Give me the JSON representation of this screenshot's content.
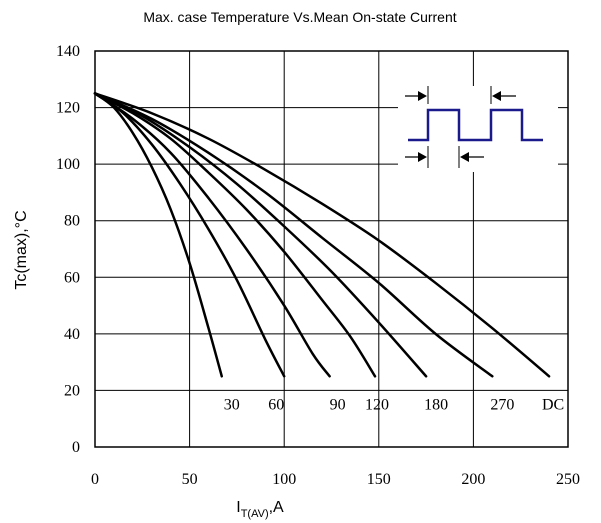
{
  "chart_data": {
    "type": "line",
    "title": "Max. case Temperature Vs.Mean On-state Current",
    "xlabel_main": "I",
    "xlabel_sub": "T(AV)",
    "xlabel_tail": ",A",
    "ylabel": "Tc(max),°C",
    "xlim": [
      0,
      250
    ],
    "ylim": [
      0,
      140
    ],
    "x_ticks": [
      "0",
      "50",
      "100",
      "150",
      "200",
      "250"
    ],
    "y_ticks": [
      "0",
      "20",
      "40",
      "60",
      "80",
      "100",
      "120",
      "140"
    ],
    "grid": true,
    "series": [
      {
        "name": "30",
        "x": [
          0,
          10,
          20,
          30,
          40,
          50,
          60,
          67
        ],
        "y": [
          125,
          120,
          111,
          99,
          84,
          65,
          42,
          25
        ]
      },
      {
        "name": "60",
        "x": [
          0,
          15,
          30,
          45,
          60,
          75,
          90,
          100
        ],
        "y": [
          125,
          118,
          107,
          93,
          77,
          59,
          38,
          25
        ]
      },
      {
        "name": "90",
        "x": [
          0,
          20,
          40,
          60,
          80,
          100,
          115,
          124
        ],
        "y": [
          125,
          116,
          104,
          88,
          70,
          50,
          33,
          25
        ]
      },
      {
        "name": "120",
        "x": [
          0,
          20,
          40,
          60,
          80,
          100,
          120,
          135,
          148
        ],
        "y": [
          125,
          118,
          109,
          97,
          84,
          69,
          52,
          39,
          25
        ]
      },
      {
        "name": "180",
        "x": [
          0,
          25,
          50,
          75,
          100,
          125,
          150,
          175
        ],
        "y": [
          125,
          117,
          106,
          93,
          78,
          62,
          44,
          25
        ]
      },
      {
        "name": "270",
        "x": [
          0,
          30,
          60,
          90,
          120,
          150,
          180,
          210
        ],
        "y": [
          125,
          116,
          104,
          90,
          74,
          58,
          40,
          25
        ]
      },
      {
        "name": "DC",
        "x": [
          0,
          30,
          60,
          90,
          120,
          150,
          180,
          210,
          240
        ],
        "y": [
          125,
          118,
          109,
          98,
          86,
          73,
          58,
          42,
          25
        ]
      }
    ]
  }
}
